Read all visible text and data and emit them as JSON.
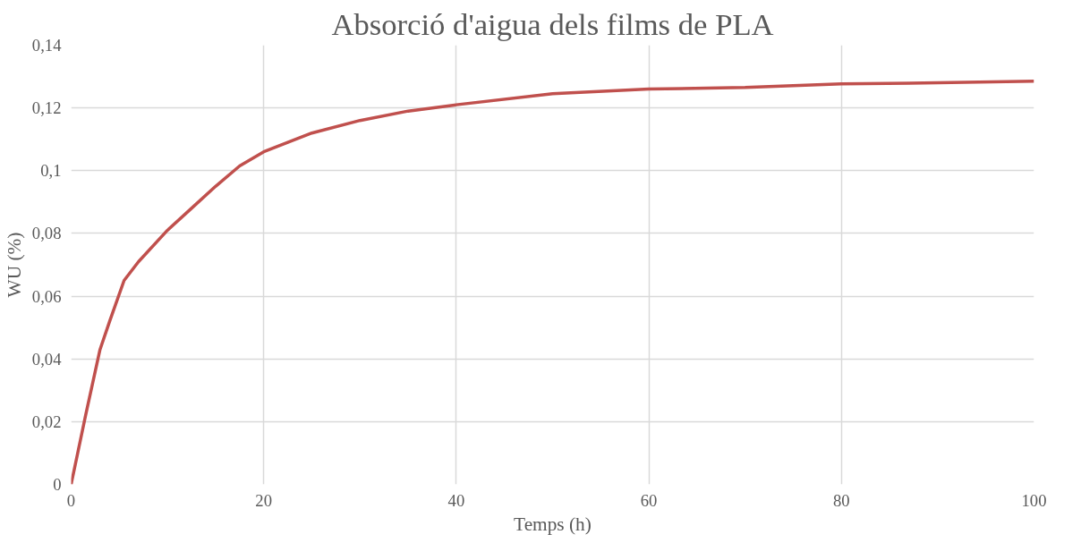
{
  "chart_data": {
    "type": "line",
    "title": "Absorció d'aigua dels films de PLA",
    "xlabel": "Temps (h)",
    "ylabel": "WU (%)",
    "x": [
      0,
      1.5,
      3,
      4,
      5.5,
      7,
      10,
      12.5,
      15,
      17.5,
      20,
      22.5,
      25,
      30,
      35,
      40,
      50,
      60,
      70,
      80,
      90,
      100
    ],
    "series": [
      {
        "color": "#c0504d",
        "values": [
          0,
          0.022,
          0.043,
          0.052,
          0.065,
          0.071,
          0.081,
          0.088,
          0.095,
          0.1015,
          0.106,
          0.109,
          0.112,
          0.116,
          0.119,
          0.121,
          0.1245,
          0.126,
          0.1265,
          0.1277,
          0.128,
          0.1285
        ]
      }
    ],
    "xlim": [
      0,
      100
    ],
    "xticks": [
      0,
      20,
      40,
      60,
      80,
      100
    ],
    "ylim": [
      0,
      0.14
    ],
    "yticks": [
      {
        "value": 0,
        "label": "0"
      },
      {
        "value": 0.02,
        "label": "0,02"
      },
      {
        "value": 0.04,
        "label": "0,04"
      },
      {
        "value": 0.06,
        "label": "0,06"
      },
      {
        "value": 0.08,
        "label": "0,08"
      },
      {
        "value": 0.1,
        "label": "0,1"
      },
      {
        "value": 0.12,
        "label": "0,12"
      },
      {
        "value": 0.14,
        "label": "0,14"
      }
    ],
    "grid": true,
    "marker": "none",
    "line_style": "solid"
  }
}
